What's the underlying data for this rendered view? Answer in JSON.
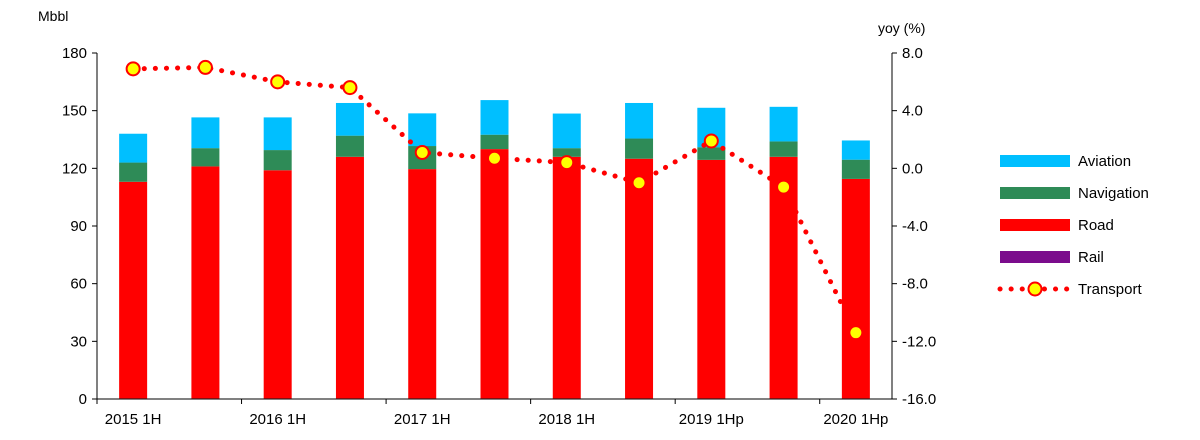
{
  "chart_data": {
    "type": "bar",
    "stacked": true,
    "categories": [
      "2015 1H",
      "",
      "2016 1H",
      "",
      "2017 1H",
      "",
      "2018 1H",
      "",
      "2019 1Hp",
      "",
      "2020 1Hp"
    ],
    "x_tick_labels": [
      "2015 1H",
      "2016 1H",
      "2017 1H",
      "2018 1H",
      "2019 1Hp",
      "2020 1Hp"
    ],
    "left_axis": {
      "unit": "Mbbl",
      "ylim": [
        0,
        180
      ],
      "ticks": [
        "0",
        "30",
        "60",
        "90",
        "120",
        "150",
        "180"
      ]
    },
    "right_axis": {
      "unit": "yoy (%)",
      "ylim": [
        -16,
        8
      ],
      "ticks": [
        "-16.0",
        "-12.0",
        "-8.0",
        "-4.0",
        "0.0",
        "4.0",
        "8.0"
      ]
    },
    "series": [
      {
        "name": "Rail",
        "kind": "bar",
        "color": "#7B0C8C",
        "values": [
          0.3,
          0.3,
          0.3,
          0.3,
          0.3,
          0.3,
          0.3,
          0.3,
          0.3,
          0.3,
          0.3
        ]
      },
      {
        "name": "Road",
        "kind": "bar",
        "color": "#FF0000",
        "values": [
          112.7,
          120.7,
          118.7,
          125.7,
          119.3,
          129.7,
          125.7,
          124.7,
          124.1,
          125.7,
          114.2
        ]
      },
      {
        "name": "Navigation",
        "kind": "bar",
        "color": "#2E8B57",
        "values": [
          10,
          9.5,
          10.5,
          11,
          12,
          7.5,
          4.5,
          10.5,
          6.6,
          8,
          10
        ]
      },
      {
        "name": "Aviation",
        "kind": "bar",
        "color": "#00BFFF",
        "values": [
          15,
          16,
          17,
          17,
          17,
          18,
          18,
          18.5,
          20.5,
          18,
          10
        ]
      },
      {
        "name": "Transport",
        "kind": "line",
        "axis": "right",
        "color": "#FF0000",
        "marker_fill": "#FFFF00",
        "values": [
          6.9,
          7.0,
          6.0,
          5.6,
          1.1,
          0.7,
          0.4,
          -1.0,
          1.9,
          -1.3,
          -11.4
        ]
      }
    ],
    "legend": {
      "placement": "right",
      "order": [
        "Aviation",
        "Navigation",
        "Road",
        "Rail",
        "Transport"
      ]
    },
    "grid": false
  }
}
